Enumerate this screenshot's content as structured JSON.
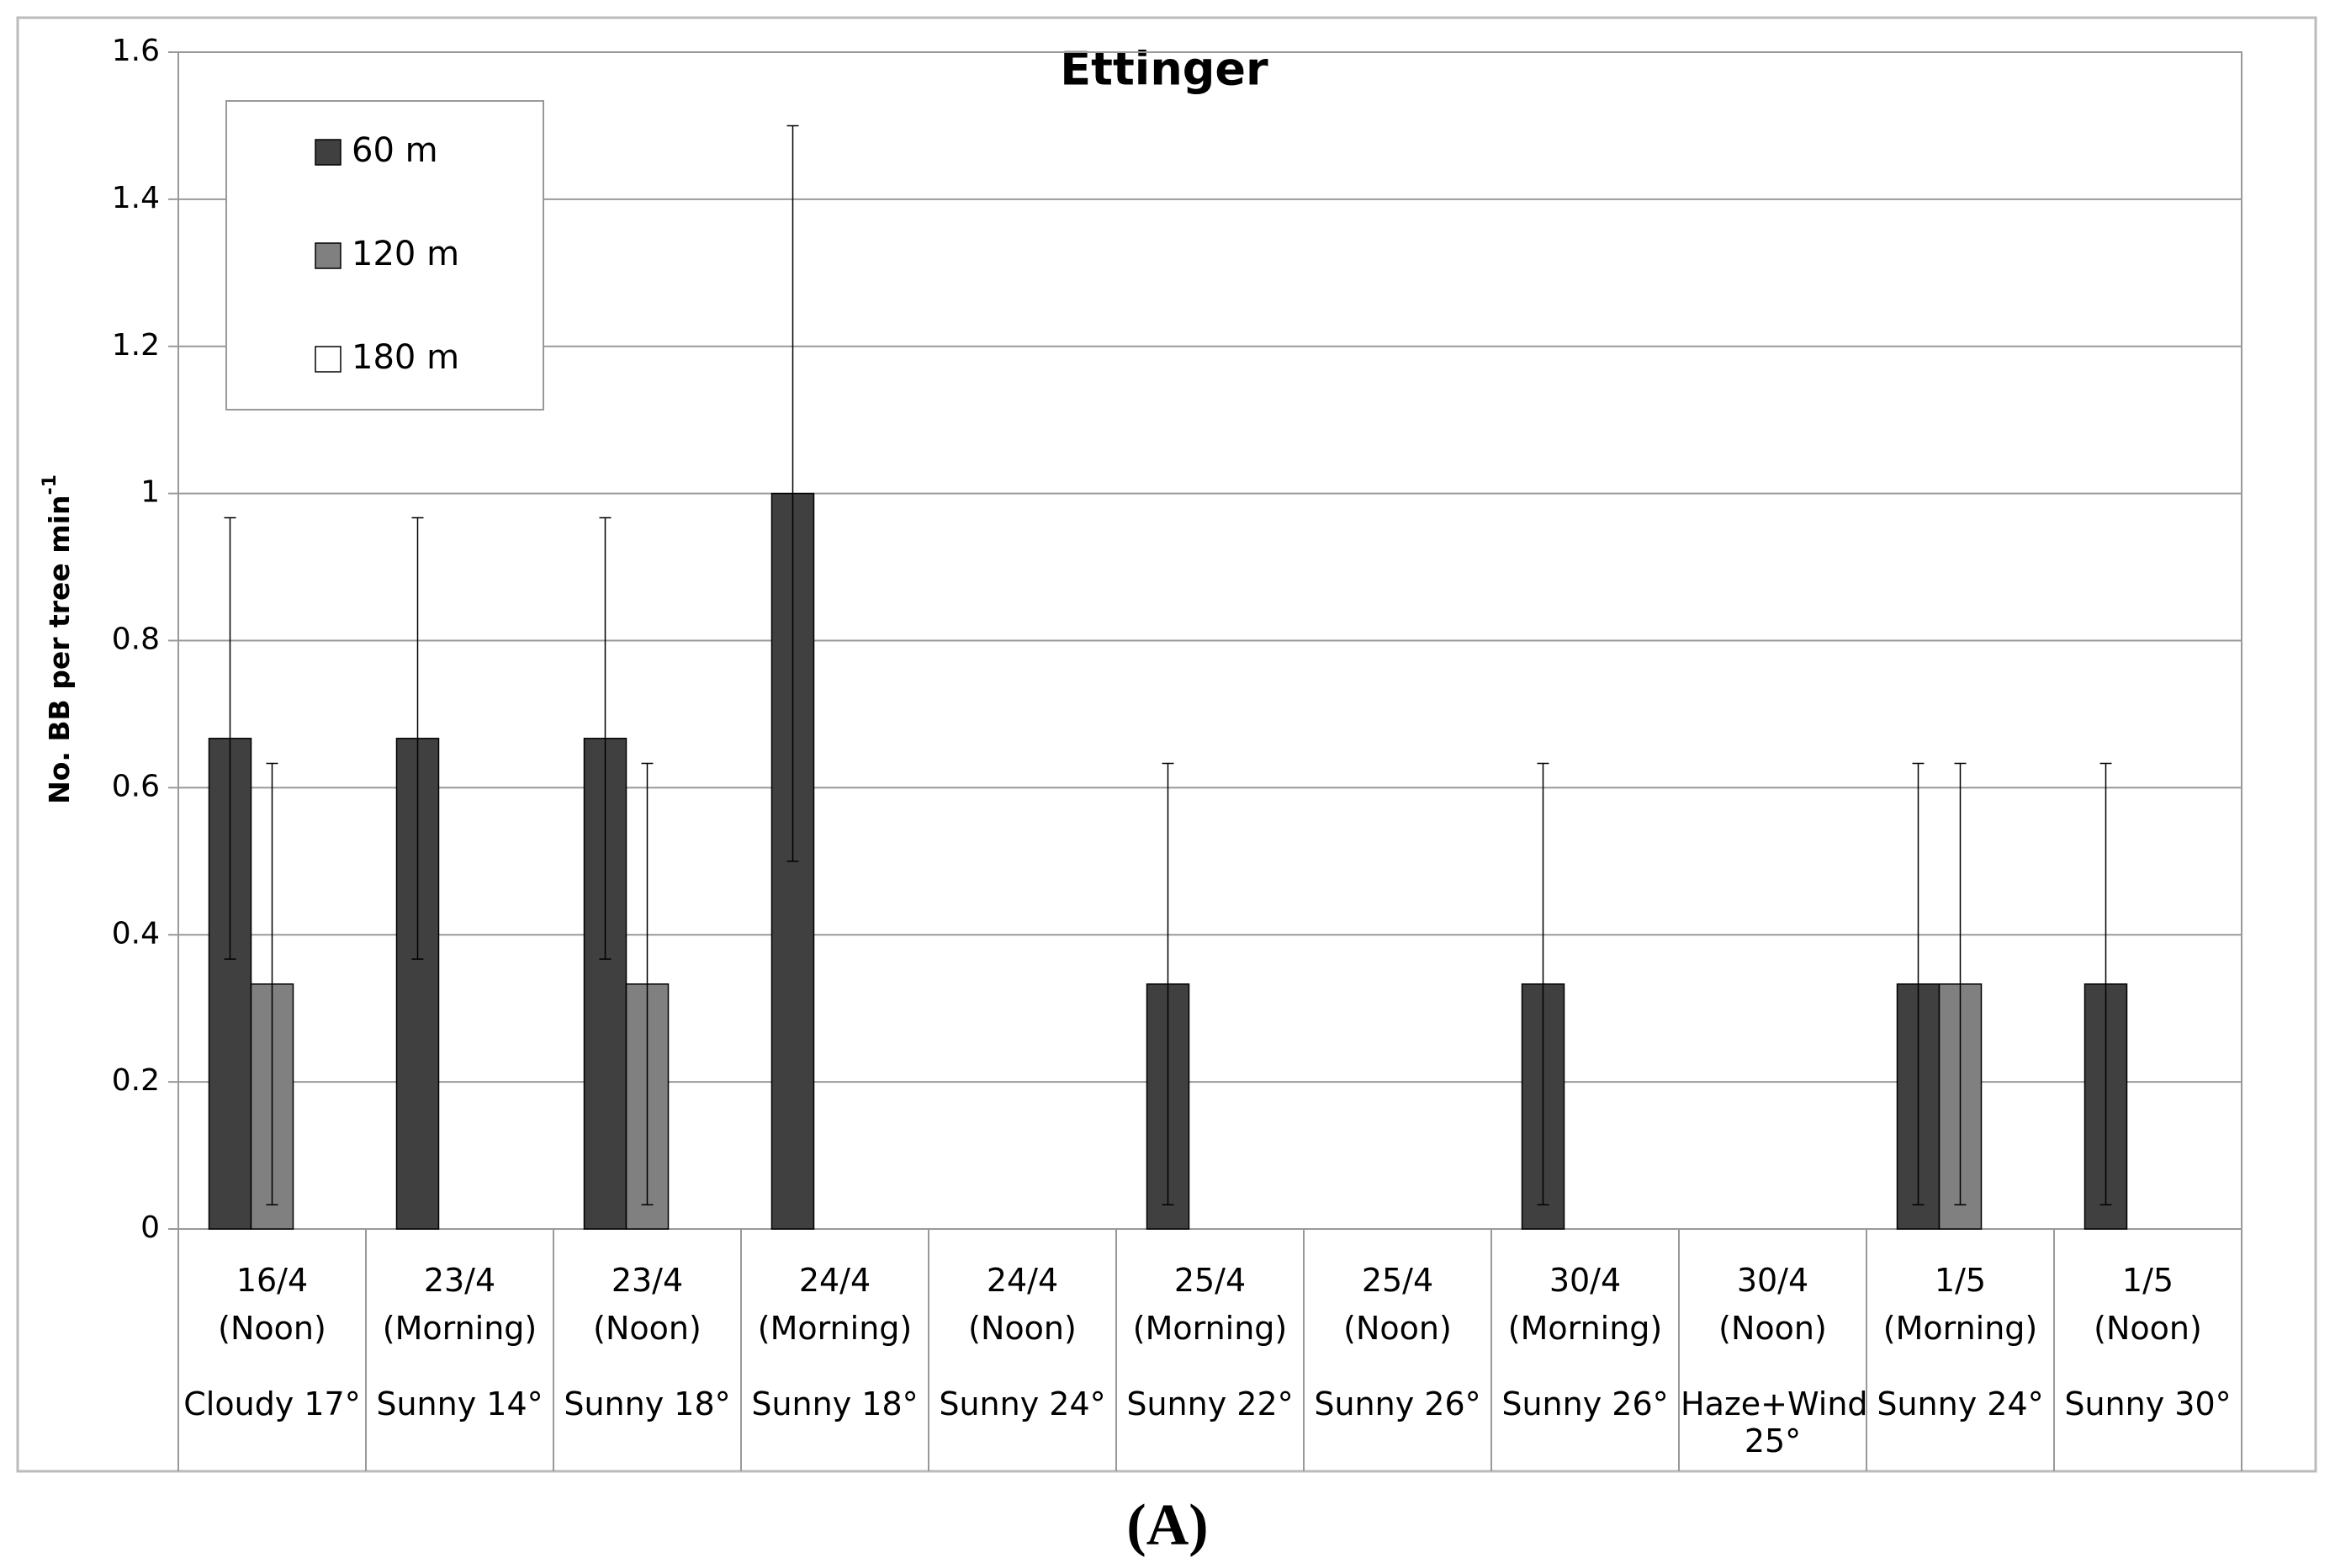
{
  "chart_data": {
    "type": "bar",
    "title": "Ettinger",
    "y_label": "No. BB per tree min",
    "y_label_superscript": "-1",
    "caption": "(A)",
    "categories": [
      [
        "16/4",
        "(Noon)",
        "Cloudy 17°"
      ],
      [
        "23/4",
        "(Morning)",
        "Sunny 14°"
      ],
      [
        "23/4",
        "(Noon)",
        "Sunny 18°"
      ],
      [
        "24/4",
        "(Morning)",
        "Sunny 18°"
      ],
      [
        "24/4",
        "(Noon)",
        "Sunny 24°"
      ],
      [
        "25/4",
        "(Morning)",
        "Sunny 22°"
      ],
      [
        "25/4",
        "(Noon)",
        "Sunny 26°"
      ],
      [
        "30/4",
        "(Morning)",
        "Sunny 26°"
      ],
      [
        "30/4",
        "(Noon)",
        "Haze+Wind 25°"
      ],
      [
        "1/5",
        "(Morning)",
        "Sunny 24°"
      ],
      [
        "1/5",
        "(Noon)",
        "Sunny 30°"
      ]
    ],
    "series": [
      {
        "name": "60 m",
        "color": "#404040",
        "values": [
          0.667,
          0.667,
          0.667,
          1,
          0,
          0.333,
          0,
          0.333,
          0,
          0.333,
          0.333
        ],
        "errors": [
          0.3,
          0.3,
          0.3,
          0.5,
          null,
          0.3,
          null,
          0.3,
          null,
          0.3,
          0.3
        ]
      },
      {
        "name": "120 m",
        "color": "#808080",
        "values": [
          0.333,
          0,
          0.333,
          0,
          0,
          0,
          0,
          0,
          0,
          0.333,
          0
        ],
        "errors": [
          0.3,
          null,
          0.3,
          null,
          null,
          null,
          null,
          null,
          null,
          0.3,
          null
        ]
      },
      {
        "name": "180 m",
        "color": "#ffffff",
        "values": [
          0,
          0,
          0,
          0,
          0,
          0,
          0,
          0,
          0,
          0,
          0
        ],
        "errors": [
          null,
          null,
          null,
          null,
          null,
          null,
          null,
          null,
          null,
          null,
          null
        ]
      }
    ],
    "ylim": [
      0,
      1.6
    ],
    "yticks": [
      0,
      0.2,
      0.4,
      0.6,
      0.8,
      1,
      1.2,
      1.4,
      1.6
    ],
    "grid": true,
    "legend": "upper-left"
  }
}
